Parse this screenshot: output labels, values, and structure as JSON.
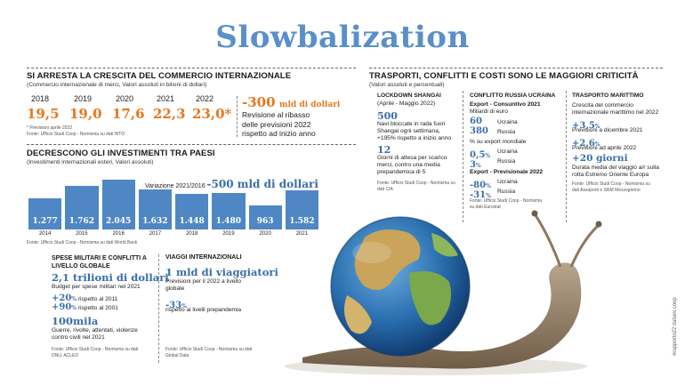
{
  "title": "Slowbalization",
  "left": {
    "trade": {
      "header": "SI ARRESTA LA CRESCITA DEL COMMERCIO INTERNAZIONALE",
      "subheader": "(Commercio internazionale di merci, Valori assoluti in bilioni di dollari)",
      "years": [
        "2018",
        "2019",
        "2020",
        "2021",
        "2022"
      ],
      "values": [
        "19,5",
        "19,0",
        "17,6",
        "22,3",
        "23,0*"
      ],
      "note": "* Previsioni aprile 2022",
      "source": "Fonte: Ufficio Studi Coop - Nomisma su dati WTO",
      "revision_value": "-300",
      "revision_unit": "mld di dollari",
      "revision_text_1": "Revisione al ribasso",
      "revision_text_2": "delle previsioni 2022",
      "revision_text_3": "rispetto ad inizio anno"
    },
    "invest": {
      "header": "DECRESCONO  GLI INVESTIMENTI TRA PAESI",
      "subheader": "(Investimenti internazionali esteri, Valori assoluti)",
      "variation_label": "Variazione 2021/2016",
      "variation_value": "-500 mld di dollari",
      "source": "Fonte: Ufficio Studi Coop - Nomisma su dati World Bank"
    }
  },
  "chart_data": {
    "type": "bar",
    "categories": [
      "2014",
      "2015",
      "2016",
      "2017",
      "2018",
      "2019",
      "2020",
      "2021"
    ],
    "values": [
      1277,
      1762,
      2045,
      1632,
      1448,
      1480,
      963,
      1582
    ],
    "value_labels": [
      "1.277",
      "1.762",
      "2.045",
      "1.632",
      "1.448",
      "1.480",
      "963",
      "1.582"
    ],
    "color": "#4f87c4"
  },
  "military": {
    "header_1": "SPESE MILITARI E CONFLITTI A",
    "header_2": "LIVELLO GLOBALE",
    "big": "2,1 trilioni di dollari",
    "big_sub": "Budget per spese militari nel 2021",
    "p1": "+20",
    "p1_unit": "%",
    "p1_text": "rispetto al 2011",
    "p2": "+90",
    "p2_unit": "%",
    "p2_text": "rispetto al 2001",
    "big2": "100mila",
    "big2_sub_1": "Guerre, rivolte, attentati, violenze",
    "big2_sub_2": "contro civili nel 2021",
    "source_1": "Fonte: Ufficio Studi Coop - Nomisma su dati",
    "source_2": "DNU, ACLED"
  },
  "travel": {
    "header": "VIAGGI INTERNAZIONALI",
    "big": "1 mld di viaggiatori",
    "sub_1": "Previsioni per il 2022 a livello",
    "sub_2": "globale",
    "pct": "-33",
    "pct_unit": "%",
    "pct_text": "rispetto ai livelli prepandemia",
    "source_1": "Fonte: Ufficio Studi Coop - Nomisma su dati",
    "source_2": "Global Data"
  },
  "right": {
    "header": "TRASPORTI, CONFLITTI  E COSTI SONO LE MAGGIORI CRITICITÀ",
    "subheader": "(Valori assoluti e percentuali)",
    "lockdown": {
      "header": "LOCKDOWN SHANGAI",
      "sub": "(Aprile - Maggio 2022)",
      "n1": "500",
      "t1_1": "Navi bloccate in rada fuori",
      "t1_2": "Shangai ogni settimana,",
      "t1_3": "+195% rispetto a inizio anno",
      "n2": "12",
      "t2_1": "Giorni di attesa per scarico",
      "t2_2": "merci, contro una media",
      "t2_3": "prepandemica di 5",
      "source_1": "Fonte: Ufficio Studi Coop - Nomisma su",
      "source_2": "dati CIA"
    },
    "ukraine": {
      "header": "CONFLITTO RUSSIA UCRAINA",
      "export_header": "Export - Consuntivo 2021",
      "export_sub": "Miliardi di euro",
      "v1": "60",
      "l1": "Ucraina",
      "v2": "380",
      "l2": "Russia",
      "pct_sub": "% su export mondiale",
      "v3": "0,5",
      "v3_unit": "%",
      "l3": "Ucraina",
      "v4": "3",
      "v4_unit": "%",
      "l4": "Russia",
      "prev_header": "Export - Previsionale 2022",
      "v5": "-80",
      "v5_unit": "%",
      "l5": "Ucraina",
      "v6": "-31",
      "v6_unit": "%",
      "l6": "Russia",
      "source_1": "Fonte: Ufficio Studi Coop - Nomisma",
      "source_2": "su dati Eurostat"
    },
    "maritime": {
      "header": "TRASPORTO MARITTIMO",
      "t1_1": "Crescita del commercio",
      "t1_2": "internazionale marittimo nel 2022",
      "v1": "+3,5",
      "v1_unit": "%",
      "t2": "Previsioni a dicembre 2021",
      "v2": "+2,6",
      "v2_unit": "%",
      "t3": "Previsioni ad aprile 2022",
      "v3": "+20 giorni",
      "t4_1": "Durata media del viaggio a/r sulla",
      "t4_2": "rotta Estremo Oriente Europa",
      "source_1": "Fonte: Ufficio Studi Coop - Nomisma su",
      "source_2": "dati Assoporti e SRM Mezzogiorno"
    }
  },
  "side_text": "#rapporto22 italiani.coop"
}
